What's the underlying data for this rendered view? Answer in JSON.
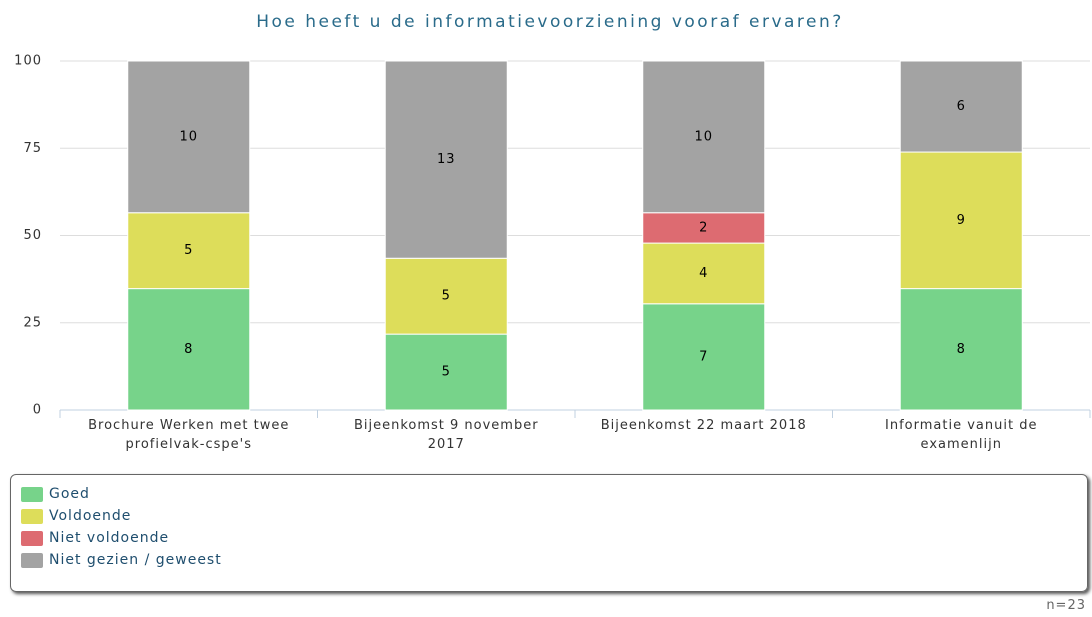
{
  "chart_data": {
    "type": "bar",
    "stack": "percent",
    "title": "Hoe heeft u de informatievoorziening vooraf ervaren?",
    "categories": [
      "Brochure Werken met twee profielvak-cspe's",
      "Bijeenkomst 9 november 2017",
      "Bijeenkomst 22 maart 2018",
      "Informatie vanuit de examenlijn"
    ],
    "series": [
      {
        "name": "Goed",
        "color": "#77d38a",
        "values": [
          8,
          5,
          7,
          8
        ]
      },
      {
        "name": "Voldoende",
        "color": "#dddd5a",
        "values": [
          5,
          5,
          4,
          9
        ]
      },
      {
        "name": "Niet voldoende",
        "color": "#dd6b71",
        "values": [
          0,
          0,
          2,
          0
        ]
      },
      {
        "name": "Niet gezien / geweest",
        "color": "#a3a3a3",
        "values": [
          10,
          13,
          10,
          6
        ]
      }
    ],
    "ylim": [
      0,
      100
    ],
    "yticks": [
      0,
      25,
      50,
      75,
      100
    ],
    "grid": true,
    "note": "n=23"
  }
}
